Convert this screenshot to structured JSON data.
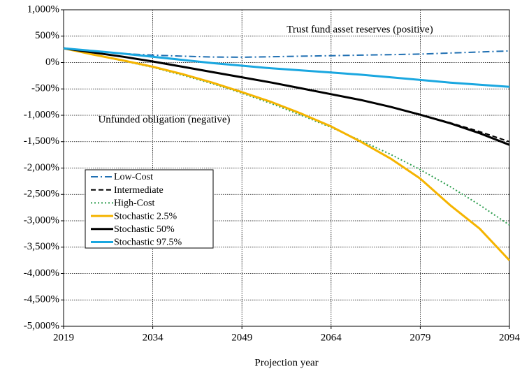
{
  "chart_data": {
    "type": "line",
    "x_label": "Projection  year",
    "annotations": [
      "Trust fund asset reserves (positive)",
      "Unfunded obligation (negative)"
    ],
    "x": [
      2019,
      2024,
      2029,
      2034,
      2039,
      2044,
      2049,
      2054,
      2059,
      2064,
      2069,
      2074,
      2079,
      2084,
      2089,
      2094
    ],
    "xlim": [
      2019,
      2094
    ],
    "xticks": [
      2019,
      2034,
      2049,
      2064,
      2079,
      2094
    ],
    "ylim": [
      -5000,
      1000
    ],
    "yticks": [
      {
        "value": 1000,
        "label": "1,000%"
      },
      {
        "value": 500,
        "label": "500%"
      },
      {
        "value": 0,
        "label": "0%"
      },
      {
        "value": -500,
        "label": "-500%"
      },
      {
        "value": -1000,
        "label": "-1,000%"
      },
      {
        "value": -1500,
        "label": "-1,500%"
      },
      {
        "value": -2000,
        "label": "-2,000%"
      },
      {
        "value": -2500,
        "label": "-2,500%"
      },
      {
        "value": -3000,
        "label": "-3,000%"
      },
      {
        "value": -3500,
        "label": "-3,500%"
      },
      {
        "value": -4000,
        "label": "-4,000%"
      },
      {
        "value": -4500,
        "label": "-4,500%"
      },
      {
        "value": -5000,
        "label": "-5,000%"
      }
    ],
    "grid": true,
    "series": [
      {
        "name": "Low-Cost",
        "color": "#1f6fb2",
        "line_style": "dashdot",
        "values": [
          270,
          220,
          170,
          140,
          120,
          105,
          100,
          110,
          120,
          130,
          140,
          150,
          160,
          180,
          200,
          220
        ]
      },
      {
        "name": "Intermediate",
        "color": "#000000",
        "line_style": "dashed",
        "values": [
          270,
          190,
          110,
          20,
          -80,
          -180,
          -280,
          -380,
          -490,
          -600,
          -710,
          -840,
          -990,
          -1140,
          -1310,
          -1500
        ]
      },
      {
        "name": "High-Cost",
        "color": "#2e9e4f",
        "line_style": "dotted",
        "values": [
          270,
          150,
          30,
          -90,
          -240,
          -400,
          -580,
          -780,
          -1000,
          -1230,
          -1480,
          -1740,
          -2030,
          -2350,
          -2700,
          -3080
        ]
      },
      {
        "name": "Stochastic 2.5%",
        "color": "#f5b400",
        "line_style": "solid",
        "values": [
          270,
          150,
          40,
          -80,
          -220,
          -380,
          -560,
          -750,
          -970,
          -1210,
          -1500,
          -1820,
          -2200,
          -2700,
          -3150,
          -3750
        ]
      },
      {
        "name": "Stochastic 50%",
        "color": "#000000",
        "line_style": "solid",
        "values": [
          270,
          190,
          110,
          20,
          -80,
          -180,
          -280,
          -380,
          -490,
          -600,
          -710,
          -840,
          -990,
          -1150,
          -1340,
          -1560
        ]
      },
      {
        "name": "Stochastic 97.5%",
        "color": "#1aa7e0",
        "line_style": "solid",
        "values": [
          270,
          220,
          170,
          110,
          50,
          -10,
          -60,
          -110,
          -150,
          -190,
          -230,
          -280,
          -330,
          -380,
          -420,
          -460
        ]
      }
    ]
  }
}
